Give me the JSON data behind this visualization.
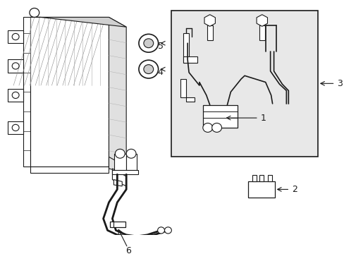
{
  "background_color": "#ffffff",
  "line_color": "#1a1a1a",
  "box_fill": "#e8e8e8",
  "label_fontsize": 9,
  "fig_width": 4.89,
  "fig_height": 3.6,
  "dpi": 100
}
